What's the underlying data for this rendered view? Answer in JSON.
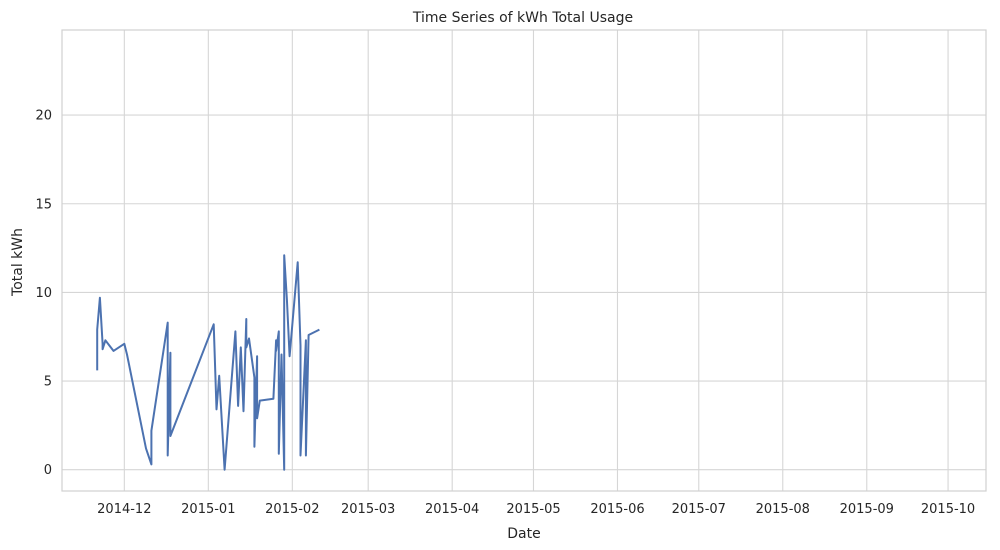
{
  "chart_data": {
    "type": "line",
    "title": "Time Series of kWh Total Usage",
    "xlabel": "Date",
    "ylabel": "Total kWh",
    "x_range": [
      "2014-11-08",
      "2015-10-15"
    ],
    "ylim": [
      -1.2,
      24.8
    ],
    "y_ticks": [
      0,
      5,
      10,
      15,
      20
    ],
    "x_ticks": [
      "2014-12-01",
      "2015-01-01",
      "2015-02-01",
      "2015-03-01",
      "2015-04-01",
      "2015-05-01",
      "2015-06-01",
      "2015-07-01",
      "2015-08-01",
      "2015-09-01",
      "2015-10-01"
    ],
    "x_tick_labels": [
      "2014-12",
      "2015-01",
      "2015-02",
      "2015-03",
      "2015-04",
      "2015-05",
      "2015-06",
      "2015-07",
      "2015-08",
      "2015-09",
      "2015-10"
    ],
    "grid": true,
    "line_color": "#4c72b0",
    "series": [
      {
        "x": [
          "2014-11-21",
          "2014-11-21",
          "2014-11-22",
          "2014-11-23",
          "2014-11-23",
          "2014-11-24",
          "2014-11-26",
          "2014-11-27",
          "2014-12-01",
          "2014-12-02",
          "2014-12-09",
          "2014-12-11",
          "2014-12-11",
          "2014-12-17",
          "2014-12-17",
          "2014-12-18",
          "2014-12-18",
          "2015-01-03",
          "2015-01-04",
          "2015-01-05",
          "2015-01-07",
          "2015-01-11",
          "2015-01-12",
          "2015-01-13",
          "2015-01-14",
          "2015-01-15",
          "2015-01-15",
          "2015-01-16",
          "2015-01-18",
          "2015-01-18",
          "2015-01-19",
          "2015-01-19",
          "2015-01-20",
          "2015-01-25",
          "2015-01-26",
          "2015-01-26",
          "2015-01-27",
          "2015-01-27",
          "2015-01-28",
          "2015-01-29",
          "2015-01-29",
          "2015-01-30",
          "2015-01-31",
          "2015-02-03",
          "2015-02-04",
          "2015-02-04",
          "2015-02-06",
          "2015-02-06",
          "2015-02-07",
          "2015-02-11"
        ],
        "y": [
          5.6,
          7.9,
          9.7,
          7.1,
          6.8,
          7.3,
          6.9,
          6.7,
          7.1,
          6.5,
          1.2,
          0.3,
          2.2,
          8.3,
          0.8,
          6.6,
          1.9,
          8.2,
          3.4,
          5.3,
          0.0,
          7.8,
          3.6,
          6.9,
          3.3,
          8.5,
          6.9,
          7.4,
          5.2,
          1.3,
          6.4,
          2.9,
          3.9,
          4.0,
          7.3,
          6.7,
          7.8,
          0.9,
          6.5,
          0.0,
          12.1,
          9.6,
          6.4,
          11.7,
          7.0,
          0.8,
          7.3,
          0.8,
          7.6,
          7.9
        ]
      }
    ]
  }
}
